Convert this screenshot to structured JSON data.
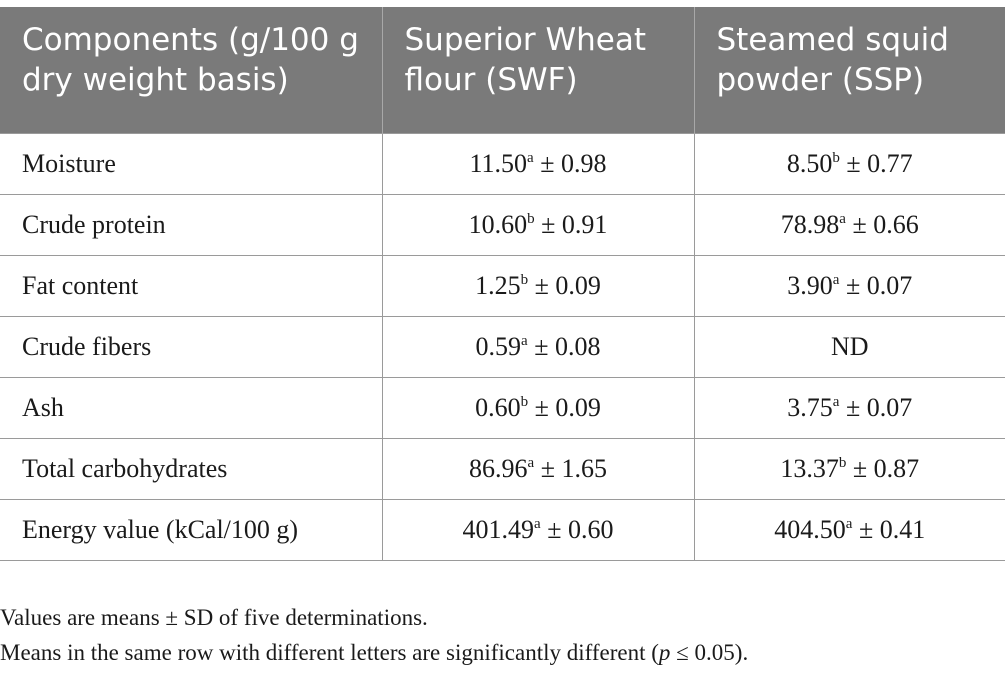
{
  "table": {
    "headers": [
      "Components (g/100 g dry weight basis)",
      "Superior Wheat flour (SWF)",
      "Steamed squid powder (SSP)"
    ],
    "rows": [
      {
        "component": "Moisture",
        "swf": {
          "value": "11.50",
          "sup": "a",
          "sd": "± 0.98"
        },
        "ssp": {
          "value": "8.50",
          "sup": "b",
          "sd": "± 0.77"
        }
      },
      {
        "component": "Crude protein",
        "swf": {
          "value": "10.60",
          "sup": "b",
          "sd": "± 0.91"
        },
        "ssp": {
          "value": "78.98",
          "sup": "a",
          "sd": "± 0.66"
        }
      },
      {
        "component": "Fat content",
        "swf": {
          "value": "1.25",
          "sup": "b",
          "sd": "± 0.09"
        },
        "ssp": {
          "value": "3.90",
          "sup": "a",
          "sd": "± 0.07"
        }
      },
      {
        "component": "Crude fibers",
        "swf": {
          "value": "0.59",
          "sup": "a",
          "sd": "± 0.08"
        },
        "ssp": {
          "value": "ND",
          "sup": "",
          "sd": ""
        }
      },
      {
        "component": "Ash",
        "swf": {
          "value": "0.60",
          "sup": "b",
          "sd": "± 0.09"
        },
        "ssp": {
          "value": "3.75",
          "sup": "a",
          "sd": "± 0.07"
        }
      },
      {
        "component": "Total carbohydrates",
        "swf": {
          "value": "86.96",
          "sup": "a",
          "sd": "± 1.65"
        },
        "ssp": {
          "value": "13.37",
          "sup": "b",
          "sd": "± 0.87"
        }
      },
      {
        "component": "Energy value (kCal/100 g)",
        "swf": {
          "value": "401.49",
          "sup": "a",
          "sd": "± 0.60"
        },
        "ssp": {
          "value": "404.50",
          "sup": "a",
          "sd": "± 0.41"
        }
      }
    ]
  },
  "footnotes": {
    "line1": "Values are means ± SD of five determinations.",
    "line2_prefix": "Means in the same row with different letters are significantly different (",
    "line2_italic": "p",
    "line2_suffix": " ≤ 0.05)."
  }
}
